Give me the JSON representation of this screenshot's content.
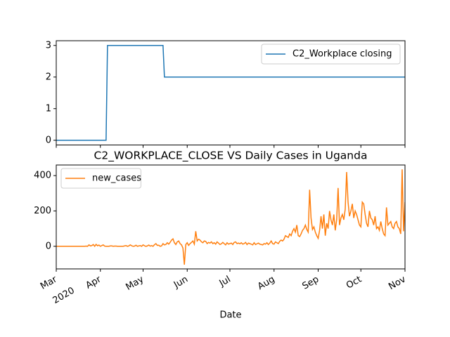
{
  "chart_data": [
    {
      "type": "line",
      "x": [
        0,
        35,
        36,
        75,
        76,
        245
      ],
      "series": [
        {
          "name": "C2_Workplace closing",
          "color": "#1f77b4",
          "values": [
            0,
            0,
            3,
            3,
            2,
            2
          ]
        }
      ],
      "xlim": [
        0,
        245
      ],
      "xticks": [
        0,
        31,
        61,
        92,
        122,
        153,
        184,
        214,
        245
      ],
      "ylim": [
        -0.15,
        3.15
      ],
      "yticks": [
        0,
        1,
        2,
        3
      ],
      "legend": "upper-right"
    },
    {
      "type": "line",
      "title": "C2_WORKPLACE_CLOSE VS Daily Cases in Uganda",
      "xlabel": "Date",
      "x_year_label": "2020",
      "x": [
        0,
        1,
        2,
        3,
        4,
        5,
        6,
        7,
        8,
        9,
        10,
        11,
        12,
        13,
        14,
        15,
        16,
        17,
        18,
        19,
        20,
        21,
        22,
        23,
        24,
        25,
        26,
        27,
        28,
        29,
        30,
        31,
        32,
        33,
        34,
        35,
        36,
        37,
        38,
        39,
        40,
        41,
        42,
        43,
        44,
        45,
        46,
        47,
        48,
        49,
        50,
        51,
        52,
        53,
        54,
        55,
        56,
        57,
        58,
        59,
        60,
        61,
        62,
        63,
        64,
        65,
        66,
        67,
        68,
        69,
        70,
        71,
        72,
        73,
        74,
        75,
        76,
        77,
        78,
        79,
        80,
        81,
        82,
        83,
        84,
        85,
        86,
        87,
        88,
        89,
        90,
        91,
        92,
        93,
        94,
        95,
        96,
        97,
        98,
        99,
        100,
        101,
        102,
        103,
        104,
        105,
        106,
        107,
        108,
        109,
        110,
        111,
        112,
        113,
        114,
        115,
        116,
        117,
        118,
        119,
        120,
        121,
        122,
        123,
        124,
        125,
        126,
        127,
        128,
        129,
        130,
        131,
        132,
        133,
        134,
        135,
        136,
        137,
        138,
        139,
        140,
        141,
        142,
        143,
        144,
        145,
        146,
        147,
        148,
        149,
        150,
        151,
        152,
        153,
        154,
        155,
        156,
        157,
        158,
        159,
        160,
        161,
        162,
        163,
        164,
        165,
        166,
        167,
        168,
        169,
        170,
        171,
        172,
        173,
        174,
        175,
        176,
        177,
        178,
        179,
        180,
        181,
        182,
        183,
        184,
        185,
        186,
        187,
        188,
        189,
        190,
        191,
        192,
        193,
        194,
        195,
        196,
        197,
        198,
        199,
        200,
        201,
        202,
        203,
        204,
        205,
        206,
        207,
        208,
        209,
        210,
        211,
        212,
        213,
        214,
        215,
        216,
        217,
        218,
        219,
        220,
        221,
        222,
        223,
        224,
        225,
        226,
        227,
        228,
        229,
        230,
        231,
        232,
        233,
        234,
        235,
        236,
        237,
        238,
        239,
        240,
        241,
        242,
        243,
        244,
        245
      ],
      "series": [
        {
          "name": "new_cases",
          "color": "#ff7f0e",
          "values": [
            0,
            0,
            0,
            0,
            0,
            0,
            0,
            0,
            0,
            0,
            0,
            0,
            0,
            0,
            0,
            0,
            0,
            0,
            0,
            0,
            0,
            1,
            0,
            8,
            2,
            4,
            10,
            0,
            11,
            3,
            7,
            0,
            4,
            8,
            1,
            0,
            0,
            0,
            2,
            2,
            0,
            1,
            1,
            0,
            0,
            0,
            0,
            0,
            2,
            4,
            0,
            2,
            8,
            3,
            0,
            1,
            6,
            0,
            2,
            4,
            0,
            8,
            3,
            0,
            2,
            7,
            1,
            4,
            0,
            9,
            15,
            5,
            6,
            0,
            2,
            15,
            8,
            10,
            20,
            12,
            22,
            35,
            42,
            20,
            10,
            25,
            30,
            15,
            8,
            -10,
            -104,
            10,
            20,
            5,
            15,
            22,
            30,
            12,
            85,
            30,
            40,
            35,
            25,
            20,
            30,
            28,
            15,
            22,
            18,
            25,
            15,
            20,
            12,
            25,
            18,
            10,
            14,
            22,
            15,
            8,
            20,
            12,
            15,
            18,
            10,
            22,
            25,
            15,
            18,
            14,
            20,
            12,
            15,
            22,
            10,
            18,
            15,
            12,
            8,
            20,
            10,
            14,
            18,
            12,
            10,
            8,
            15,
            12,
            20,
            10,
            18,
            30,
            15,
            12,
            25,
            20,
            15,
            28,
            35,
            30,
            40,
            60,
            55,
            50,
            70,
            60,
            85,
            100,
            80,
            120,
            60,
            55,
            70,
            90,
            100,
            120,
            95,
            80,
            320,
            160,
            95,
            110,
            80,
            60,
            45,
            90,
            170,
            100,
            180,
            60,
            130,
            100,
            200,
            150,
            120,
            180,
            90,
            150,
            330,
            120,
            160,
            180,
            150,
            210,
            420,
            250,
            170,
            200,
            240,
            160,
            200,
            180,
            150,
            120,
            110,
            250,
            240,
            180,
            130,
            110,
            200,
            160,
            150,
            120,
            170,
            100,
            110,
            90,
            140,
            100,
            70,
            60,
            220,
            120,
            130,
            140,
            110,
            100,
            130,
            140,
            110,
            100,
            70,
            435,
            85,
            250
          ]
        }
      ],
      "xlim": [
        0,
        245
      ],
      "xticks": [
        {
          "value": 0,
          "label": "Mar"
        },
        {
          "value": 31,
          "label": "Apr"
        },
        {
          "value": 61,
          "label": "May"
        },
        {
          "value": 92,
          "label": "Jun"
        },
        {
          "value": 122,
          "label": "Jul"
        },
        {
          "value": 153,
          "label": "Aug"
        },
        {
          "value": 184,
          "label": "Sep"
        },
        {
          "value": 214,
          "label": "Oct"
        },
        {
          "value": 245,
          "label": "Nov"
        }
      ],
      "ylim": [
        -128,
        460
      ],
      "yticks": [
        0,
        200,
        400
      ],
      "legend": "upper-left"
    }
  ]
}
